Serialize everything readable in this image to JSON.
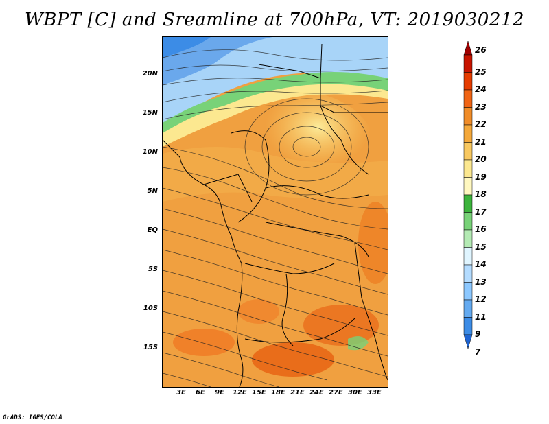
{
  "title": "WBPT [C] and Sreamline at 700hPa, VT: 2019030212",
  "credit": "GrADS: IGES/COLA",
  "map": {
    "lat_labels": [
      "20N",
      "15N",
      "10N",
      "5N",
      "EQ",
      "5S",
      "10S",
      "15S"
    ],
    "lon_labels": [
      "3E",
      "6E",
      "9E",
      "12E",
      "15E",
      "18E",
      "21E",
      "24E",
      "27E",
      "30E",
      "33E"
    ]
  },
  "colorbar": {
    "labels": [
      "26",
      "25",
      "24",
      "23",
      "22",
      "21",
      "20",
      "19",
      "18",
      "17",
      "16",
      "15",
      "14",
      "13",
      "12",
      "11",
      "9",
      "7"
    ],
    "colors": [
      "#a00000",
      "#c81400",
      "#e63c00",
      "#f06414",
      "#f08c28",
      "#f4a83a",
      "#f8c860",
      "#fce890",
      "#fff8c0",
      "#3cb43c",
      "#78d278",
      "#b4eab4",
      "#e0f5ff",
      "#b4dcff",
      "#8cc8ff",
      "#64aaf0",
      "#3c8ce6",
      "#1e64d2"
    ]
  }
}
